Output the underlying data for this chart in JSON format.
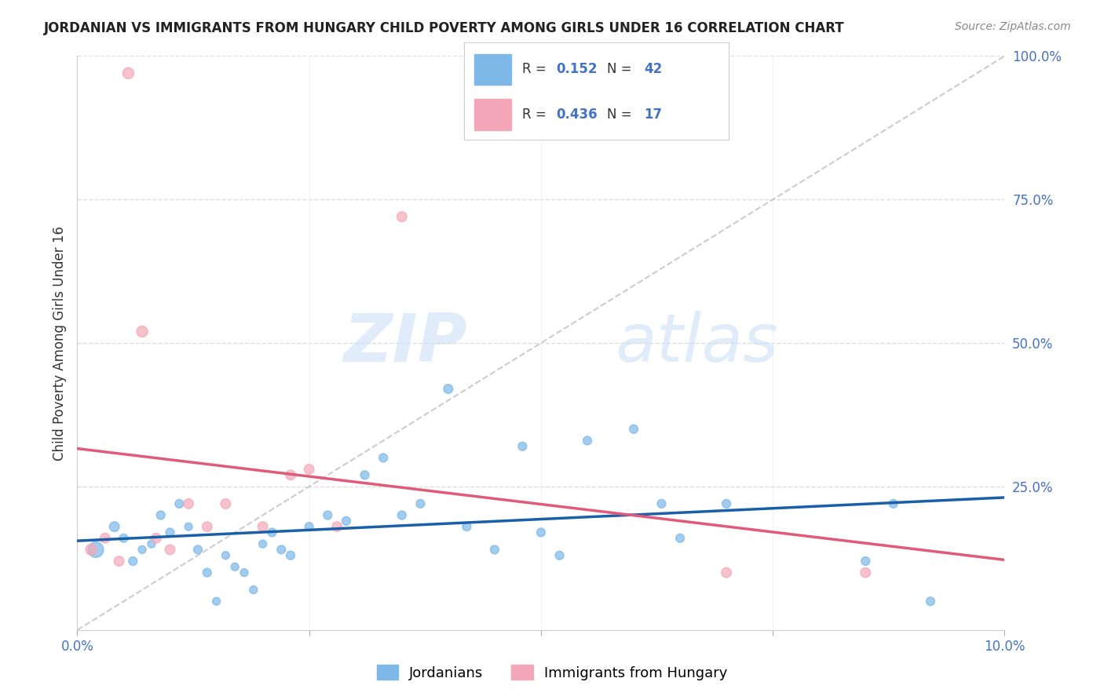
{
  "title": "JORDANIAN VS IMMIGRANTS FROM HUNGARY CHILD POVERTY AMONG GIRLS UNDER 16 CORRELATION CHART",
  "source": "Source: ZipAtlas.com",
  "ylabel": "Child Poverty Among Girls Under 16",
  "xmin": 0.0,
  "xmax": 10.0,
  "ymin": 0.0,
  "ymax": 100.0,
  "blue_R": 0.152,
  "blue_N": 42,
  "pink_R": 0.436,
  "pink_N": 17,
  "blue_color": "#7db8e8",
  "pink_color": "#f4a7b9",
  "blue_line_color": "#1a5fa8",
  "pink_line_color": "#e05a7a",
  "watermark_zip": "ZIP",
  "watermark_atlas": "atlas",
  "blue_scatter_x": [
    0.2,
    0.4,
    0.5,
    0.6,
    0.7,
    0.8,
    0.9,
    1.0,
    1.1,
    1.2,
    1.3,
    1.4,
    1.5,
    1.6,
    1.7,
    1.8,
    1.9,
    2.0,
    2.1,
    2.2,
    2.3,
    2.5,
    2.7,
    2.9,
    3.1,
    3.3,
    3.5,
    3.7,
    4.0,
    4.2,
    4.5,
    4.8,
    5.0,
    5.2,
    5.5,
    6.0,
    6.3,
    6.5,
    7.0,
    8.5,
    8.8,
    9.2
  ],
  "blue_scatter_y": [
    14,
    18,
    16,
    12,
    14,
    15,
    20,
    17,
    22,
    18,
    14,
    10,
    5,
    13,
    11,
    10,
    7,
    15,
    17,
    14,
    13,
    18,
    20,
    19,
    27,
    30,
    20,
    22,
    42,
    18,
    14,
    32,
    17,
    13,
    33,
    35,
    22,
    16,
    22,
    12,
    22,
    5
  ],
  "blue_scatter_size": [
    200,
    80,
    60,
    60,
    50,
    50,
    60,
    60,
    60,
    50,
    60,
    60,
    50,
    50,
    50,
    50,
    50,
    50,
    60,
    60,
    60,
    60,
    60,
    60,
    60,
    60,
    60,
    60,
    70,
    60,
    60,
    60,
    60,
    60,
    60,
    60,
    60,
    60,
    60,
    60,
    60,
    60
  ],
  "pink_scatter_x": [
    0.15,
    0.3,
    0.45,
    0.55,
    0.7,
    0.85,
    1.0,
    1.2,
    1.4,
    1.6,
    2.0,
    2.3,
    2.5,
    2.8,
    3.5,
    7.0,
    8.5
  ],
  "pink_scatter_y": [
    14,
    16,
    12,
    97,
    52,
    16,
    14,
    22,
    18,
    22,
    18,
    27,
    28,
    18,
    72,
    10,
    10
  ],
  "pink_scatter_size": [
    100,
    80,
    80,
    100,
    100,
    80,
    80,
    80,
    80,
    80,
    80,
    80,
    80,
    80,
    80,
    80,
    80
  ],
  "legend_blue_label": "Jordanians",
  "legend_pink_label": "Immigrants from Hungary"
}
